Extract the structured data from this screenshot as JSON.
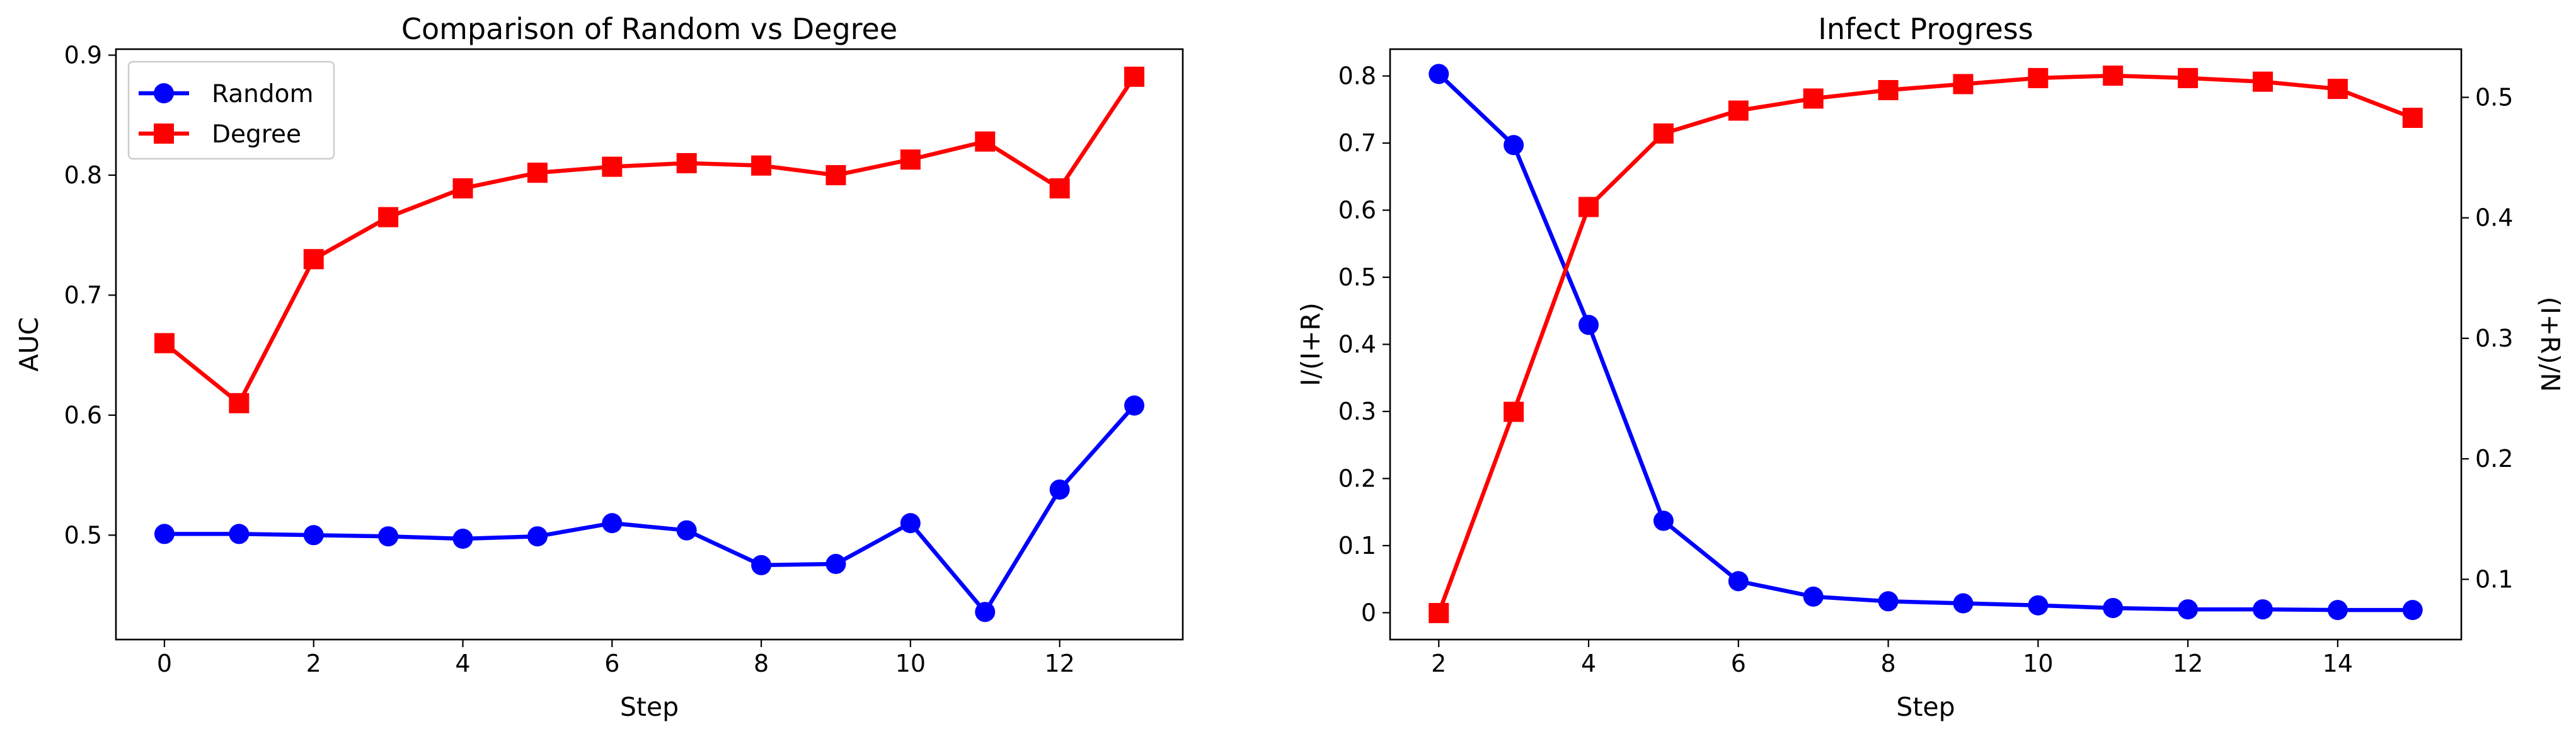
{
  "chart_data": [
    {
      "type": "line",
      "title": "Comparison of Random vs Degree",
      "xlabel": "Step",
      "ylabel": "AUC",
      "xlim": [
        -0.65,
        13.65
      ],
      "ylim": [
        0.413,
        0.905
      ],
      "xticks": [
        0,
        2,
        4,
        6,
        8,
        10,
        12
      ],
      "yticks": [
        0.5,
        0.6,
        0.7,
        0.8,
        0.9
      ],
      "grid": false,
      "legend": "upper-left",
      "x": [
        0,
        1,
        2,
        3,
        4,
        5,
        6,
        7,
        8,
        9,
        10,
        11,
        12,
        13
      ],
      "series": [
        {
          "name": "Random",
          "color": "#0000ff",
          "marker": "circle",
          "values": [
            0.501,
            0.501,
            0.5,
            0.499,
            0.497,
            0.499,
            0.51,
            0.504,
            0.475,
            0.476,
            0.51,
            0.436,
            0.538,
            0.608
          ]
        },
        {
          "name": "Degree",
          "color": "#ff0000",
          "marker": "square",
          "values": [
            0.66,
            0.61,
            0.73,
            0.765,
            0.789,
            0.802,
            0.807,
            0.81,
            0.808,
            0.8,
            0.813,
            0.828,
            0.789,
            0.882
          ]
        }
      ]
    },
    {
      "type": "line",
      "title": "Infect Progress",
      "xlabel": "Step",
      "ylabel": "I/(I+R)",
      "ylabel_right": "(I+R)/N",
      "xlim": [
        1.35,
        15.65
      ],
      "ylim": [
        -0.04,
        0.84
      ],
      "ylim_right": [
        0.05,
        0.54
      ],
      "xticks": [
        2,
        4,
        6,
        8,
        10,
        12,
        14
      ],
      "yticks": [
        0.0,
        0.1,
        0.2,
        0.3,
        0.4,
        0.5,
        0.6,
        0.7,
        0.8
      ],
      "yticks_right": [
        0.1,
        0.2,
        0.3,
        0.4,
        0.5
      ],
      "left_axis_color": "#0000ff",
      "right_axis_color": "#ff0000",
      "grid": false,
      "x": [
        2,
        3,
        4,
        5,
        6,
        7,
        8,
        9,
        10,
        11,
        12,
        13,
        14,
        15
      ],
      "series": [
        {
          "axis": "left",
          "color": "#0000ff",
          "marker": "circle",
          "values": [
            0.803,
            0.697,
            0.429,
            0.137,
            0.047,
            0.024,
            0.017,
            0.014,
            0.011,
            0.007,
            0.005,
            0.005,
            0.004,
            0.004
          ]
        },
        {
          "axis": "right",
          "color": "#ff0000",
          "marker": "square",
          "values": [
            0.072,
            0.239,
            0.409,
            0.47,
            0.489,
            0.499,
            0.506,
            0.511,
            0.516,
            0.518,
            0.516,
            0.513,
            0.507,
            0.483
          ]
        }
      ]
    }
  ]
}
